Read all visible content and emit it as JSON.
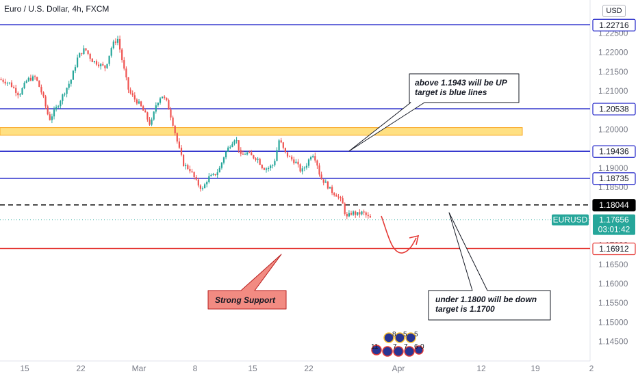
{
  "header": {
    "title": "Euro / U.S. Dollar, 4h, FXCM",
    "currency": "USD"
  },
  "chart_data": {
    "type": "candlestick",
    "symbol": "EURUSD",
    "y_ticks": [
      "1.22500",
      "1.22000",
      "1.21500",
      "1.21000",
      "1.20500",
      "1.20000",
      "1.19500",
      "1.19000",
      "1.18500",
      "1.18000",
      "1.17500",
      "1.17000",
      "1.16500",
      "1.16000",
      "1.15500",
      "1.15000",
      "1.14500"
    ],
    "x_ticks": [
      "15",
      "22",
      "Mar",
      "8",
      "15",
      "22",
      "Apr",
      "12",
      "19",
      "2"
    ],
    "ylim": [
      1.1435,
      1.2304
    ],
    "price_path": [
      [
        0,
        1.213
      ],
      [
        14,
        1.212
      ],
      [
        28,
        1.209
      ],
      [
        40,
        1.213
      ],
      [
        52,
        1.2135
      ],
      [
        62,
        1.209
      ],
      [
        72,
        1.2025
      ],
      [
        82,
        1.2055
      ],
      [
        92,
        1.209
      ],
      [
        104,
        1.213
      ],
      [
        114,
        1.219
      ],
      [
        124,
        1.221
      ],
      [
        134,
        1.218
      ],
      [
        144,
        1.217
      ],
      [
        154,
        1.216
      ],
      [
        164,
        1.222
      ],
      [
        172,
        1.2235
      ],
      [
        180,
        1.2165
      ],
      [
        188,
        1.21
      ],
      [
        196,
        1.208
      ],
      [
        204,
        1.2065
      ],
      [
        212,
        1.204
      ],
      [
        220,
        1.201
      ],
      [
        228,
        1.2065
      ],
      [
        236,
        1.209
      ],
      [
        244,
        1.207
      ],
      [
        252,
        1.202
      ],
      [
        260,
        1.196
      ],
      [
        268,
        1.191
      ],
      [
        278,
        1.1895
      ],
      [
        288,
        1.186
      ],
      [
        296,
        1.1845
      ],
      [
        304,
        1.1875
      ],
      [
        312,
        1.188
      ],
      [
        320,
        1.1895
      ],
      [
        328,
        1.1935
      ],
      [
        336,
        1.196
      ],
      [
        344,
        1.198
      ],
      [
        352,
        1.193
      ],
      [
        360,
        1.194
      ],
      [
        368,
        1.193
      ],
      [
        376,
        1.1925
      ],
      [
        384,
        1.19
      ],
      [
        392,
        1.19
      ],
      [
        400,
        1.191
      ],
      [
        408,
        1.1975
      ],
      [
        416,
        1.194
      ],
      [
        424,
        1.1925
      ],
      [
        432,
        1.1915
      ],
      [
        440,
        1.189
      ],
      [
        448,
        1.191
      ],
      [
        456,
        1.194
      ],
      [
        462,
        1.192
      ],
      [
        468,
        1.1875
      ],
      [
        476,
        1.186
      ],
      [
        484,
        1.184
      ],
      [
        492,
        1.183
      ],
      [
        500,
        1.181
      ],
      [
        506,
        1.177
      ],
      [
        514,
        1.1785
      ],
      [
        522,
        1.178
      ],
      [
        530,
        1.1785
      ],
      [
        538,
        1.1772
      ],
      [
        544,
        1.1766
      ]
    ],
    "levels": [
      {
        "value": 1.22716,
        "label": "1.22716",
        "color": "#1e22c8"
      },
      {
        "value": 1.20538,
        "label": "1.20538",
        "color": "#1e22c8"
      },
      {
        "value": 1.19436,
        "label": "1.19436",
        "color": "#1e22c8"
      },
      {
        "value": 1.18735,
        "label": "1.18735",
        "color": "#1e22c8"
      },
      {
        "value": 1.18044,
        "label": "1.18044",
        "color": "#000000",
        "dashed": true
      },
      {
        "value": 1.16912,
        "label": "1.16912",
        "color": "#e53935"
      }
    ],
    "current": {
      "symbol": "EURUSD",
      "price": "1.17656",
      "timer": "03:01:42",
      "value": 1.17656,
      "color": "#26a69a"
    },
    "zone": {
      "from": 1.1985,
      "to": 1.2005,
      "color": "#ffe082"
    },
    "annotations": {
      "upper_callout": [
        "above 1.1943 will be UP",
        "target is blue lines"
      ],
      "lower_callout": [
        "under 1.1800 will be down",
        "target is 1.1700"
      ],
      "support_label": "Strong Support"
    },
    "event_markers": {
      "top_counts": [
        "8",
        "5",
        "5"
      ],
      "bottom_counts": [
        "11",
        "7",
        "7",
        "6",
        "0"
      ]
    },
    "colors": {
      "up": "#26a69a",
      "down": "#ef5350"
    }
  }
}
